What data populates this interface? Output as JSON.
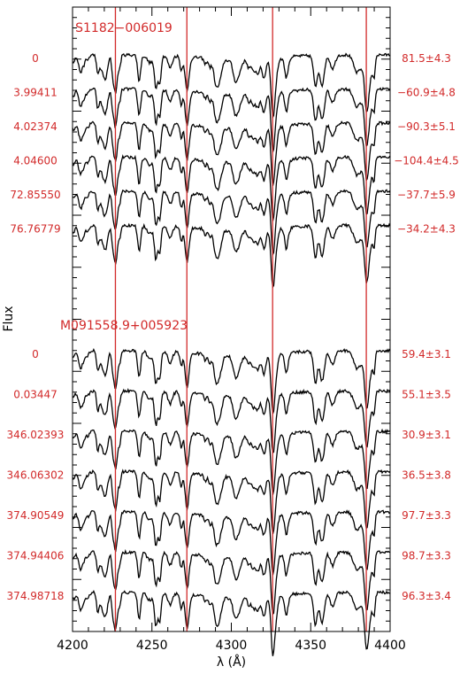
{
  "chart_data": {
    "type": "line",
    "title": "",
    "xlabel": "λ (Å)",
    "ylabel": "Flux",
    "xlim": [
      4200,
      4400
    ],
    "x_ticks": [
      "4200",
      "4250",
      "4300",
      "4350",
      "4400"
    ],
    "reference_lines": [
      4227,
      4272,
      4326,
      4385
    ],
    "colors": {
      "spectrum": "#000000",
      "reference": "#d22a2a",
      "label": "#d22a2a"
    },
    "groups": [
      {
        "name": "S1182−006019",
        "series": [
          {
            "time": "0",
            "rv": "81.5±4.3"
          },
          {
            "time": "3.99411",
            "rv": "−60.9±4.8"
          },
          {
            "time": "4.02374",
            "rv": "−90.3±5.1"
          },
          {
            "time": "4.04600",
            "rv": "−104.4±4.5"
          },
          {
            "time": "72.85550",
            "rv": "−37.7±5.9"
          },
          {
            "time": "76.76779",
            "rv": "−34.2±4.3"
          }
        ]
      },
      {
        "name": "M091558.9+005923",
        "series": [
          {
            "time": "0",
            "rv": "59.4±3.1"
          },
          {
            "time": "0.03447",
            "rv": "55.1±3.5"
          },
          {
            "time": "346.02393",
            "rv": "30.9±3.1"
          },
          {
            "time": "346.06302",
            "rv": "36.5±3.8"
          },
          {
            "time": "374.90549",
            "rv": "97.7±3.3"
          },
          {
            "time": "374.94406",
            "rv": "98.7±3.3"
          },
          {
            "time": "374.98718",
            "rv": "96.3±3.4"
          }
        ]
      }
    ]
  }
}
